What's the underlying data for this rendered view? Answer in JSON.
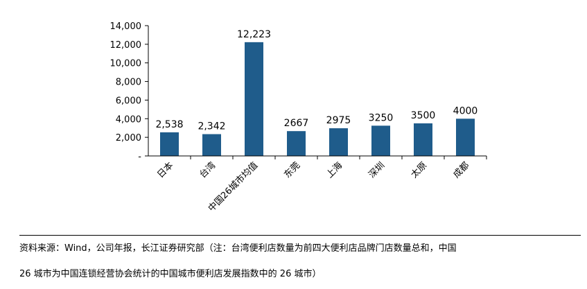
{
  "chart_data": {
    "type": "bar",
    "categories": [
      "日本",
      "台湾",
      "中国26城市均值",
      "东莞",
      "上海",
      "深圳",
      "太原",
      "成都"
    ],
    "values": [
      2538,
      2342,
      12223,
      2667,
      2975,
      3250,
      3500,
      4000
    ],
    "data_labels": [
      "2,538",
      "2,342",
      "12,223",
      "2667",
      "2975",
      "3250",
      "3500",
      "4000"
    ],
    "y_ticks": [
      0,
      2000,
      4000,
      6000,
      8000,
      10000,
      12000,
      14000
    ],
    "y_tick_labels": [
      "-",
      "2,000",
      "4,000",
      "6,000",
      "8,000",
      "10,000",
      "12,000",
      "14,000"
    ],
    "ylim": [
      0,
      14000
    ],
    "grid": false,
    "legend": "none",
    "bar_color": "#1f5c8b"
  },
  "source": {
    "line1": "资料来源：Wind，公司年报，长江证券研究部（注：台湾便利店数量为前四大便利店品牌门店数量总和，中国",
    "line2": "26 城市为中国连锁经营协会统计的中国城市便利店发展指数中的 26 城市）"
  }
}
